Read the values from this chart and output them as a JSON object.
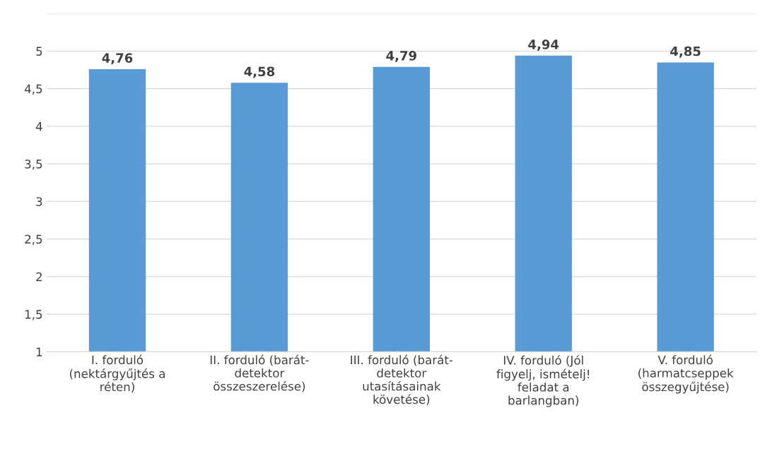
{
  "chart_data": {
    "type": "bar",
    "categories": [
      "I. forduló\n(nektárgyűjtés a\nréten)",
      "II. forduló (barát-\ndetektor\nösszeszerelése)",
      "III. forduló (barát-\ndetektor\nutasításainak\nkövetése)",
      "IV. forduló (Jól\nfigyelj, ismételj!\nfeladat a\nbarlangban)",
      "V. forduló\n(harmatcseppek\nösszegyűjtése)"
    ],
    "values": [
      4.76,
      4.58,
      4.79,
      4.94,
      4.85
    ],
    "value_labels": [
      "4,76",
      "4,58",
      "4,79",
      "4,94",
      "4,85"
    ],
    "color": "#5b9bd5",
    "ylim": [
      1,
      5.5
    ],
    "yticks": [
      1,
      {
        "value": 1.5,
        "label": "1,5"
      },
      2,
      {
        "value": 2.5,
        "label": "2,5"
      },
      3,
      {
        "value": 3.5,
        "label": "3,5"
      },
      4,
      {
        "value": 4.5,
        "label": "4,5"
      },
      5,
      {
        "value": 5.5,
        "label": null
      }
    ],
    "grid": "y"
  }
}
